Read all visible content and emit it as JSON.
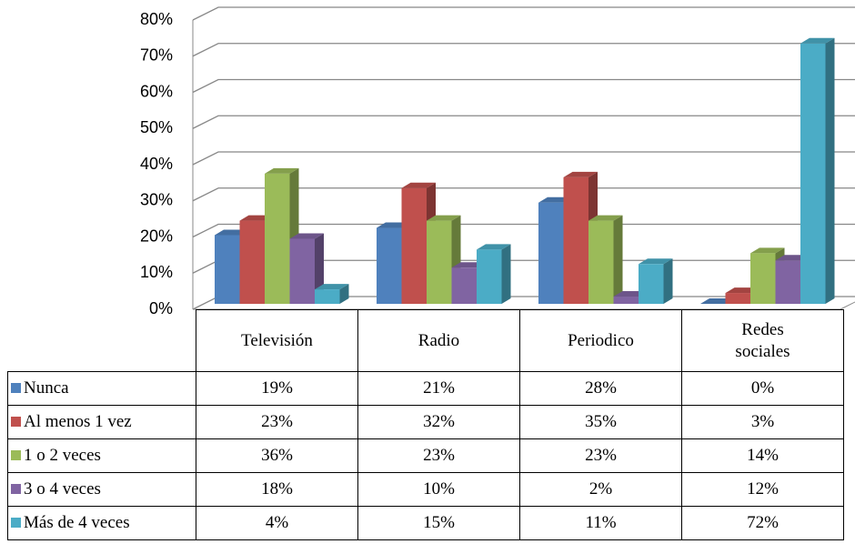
{
  "chart_data": {
    "type": "bar3d",
    "categories": [
      "Televisión",
      "Radio",
      "Periodico",
      "Redes sociales"
    ],
    "series": [
      {
        "name": "Nunca",
        "color": "#4f81bd",
        "values": [
          19,
          21,
          28,
          0
        ],
        "value_labels": [
          "19%",
          "21%",
          "28%",
          "0%"
        ]
      },
      {
        "name": "Al menos 1 vez",
        "color": "#c0504d",
        "values": [
          23,
          32,
          35,
          3
        ],
        "value_labels": [
          "23%",
          "32%",
          "35%",
          "3%"
        ]
      },
      {
        "name": "1 o 2 veces",
        "color": "#9bbb59",
        "values": [
          36,
          23,
          23,
          14
        ],
        "value_labels": [
          "36%",
          "23%",
          "23%",
          "14%"
        ]
      },
      {
        "name": "3 o 4 veces",
        "color": "#8064a2",
        "values": [
          18,
          10,
          2,
          12
        ],
        "value_labels": [
          "18%",
          "10%",
          "2%",
          "12%"
        ]
      },
      {
        "name": "Más de 4 veces",
        "color": "#4bacc6",
        "values": [
          4,
          15,
          11,
          72
        ],
        "value_labels": [
          "4%",
          "15%",
          "11%",
          "72%"
        ]
      }
    ],
    "ylim": [
      0,
      80
    ],
    "yticks": [
      {
        "value": 0,
        "label": "0%"
      },
      {
        "value": 10,
        "label": "10%"
      },
      {
        "value": 20,
        "label": "20%"
      },
      {
        "value": 30,
        "label": "30%"
      },
      {
        "value": 40,
        "label": "40%"
      },
      {
        "value": 50,
        "label": "50%"
      },
      {
        "value": 60,
        "label": "60%"
      },
      {
        "value": 70,
        "label": "70%"
      },
      {
        "value": 80,
        "label": "80%"
      }
    ],
    "grid": true,
    "legend": "table"
  }
}
